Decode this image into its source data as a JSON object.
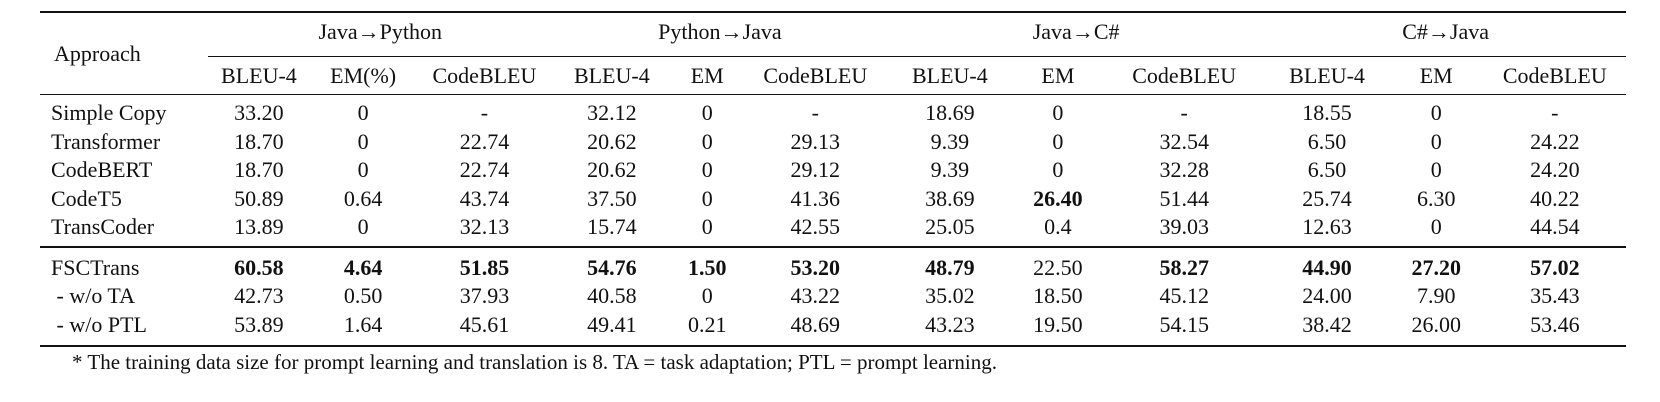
{
  "table": {
    "approach_header": "Approach",
    "groups": [
      {
        "label": "Java→Python",
        "metrics": [
          "BLEU-4",
          "EM(%)",
          "CodeBLEU"
        ]
      },
      {
        "label": "Python→Java",
        "metrics": [
          "BLEU-4",
          "EM",
          "CodeBLEU"
        ]
      },
      {
        "label": "Java→C#",
        "metrics": [
          "BLEU-4",
          "EM",
          "CodeBLEU"
        ]
      },
      {
        "label": "C#→Java",
        "metrics": [
          "BLEU-4",
          "EM",
          "CodeBLEU"
        ]
      }
    ],
    "rows": [
      {
        "approach": "Simple Copy",
        "values": [
          "33.20",
          "0",
          "-",
          "32.12",
          "0",
          "-",
          "18.69",
          "0",
          "-",
          "18.55",
          "0",
          "-"
        ],
        "bold": []
      },
      {
        "approach": "Transformer",
        "values": [
          "18.70",
          "0",
          "22.74",
          "20.62",
          "0",
          "29.13",
          "9.39",
          "0",
          "32.54",
          "6.50",
          "0",
          "24.22"
        ],
        "bold": []
      },
      {
        "approach": "CodeBERT",
        "values": [
          "18.70",
          "0",
          "22.74",
          "20.62",
          "0",
          "29.12",
          "9.39",
          "0",
          "32.28",
          "6.50",
          "0",
          "24.20"
        ],
        "bold": []
      },
      {
        "approach": "CodeT5",
        "values": [
          "50.89",
          "0.64",
          "43.74",
          "37.50",
          "0",
          "41.36",
          "38.69",
          "26.40",
          "51.44",
          "25.74",
          "6.30",
          "40.22"
        ],
        "bold": [
          7
        ]
      },
      {
        "approach": "TransCoder",
        "values": [
          "13.89",
          "0",
          "32.13",
          "15.74",
          "0",
          "42.55",
          "25.05",
          "0.4",
          "39.03",
          "12.63",
          "0",
          "44.54"
        ],
        "bold": []
      },
      {
        "approach": "FSCTrans",
        "values": [
          "60.58",
          "4.64",
          "51.85",
          "54.76",
          "1.50",
          "53.20",
          "48.79",
          "22.50",
          "58.27",
          "44.90",
          "27.20",
          "57.02"
        ],
        "bold": [
          0,
          1,
          2,
          3,
          4,
          5,
          6,
          8,
          9,
          10,
          11
        ]
      },
      {
        "approach": " - w/o TA",
        "values": [
          "42.73",
          "0.50",
          "37.93",
          "40.58",
          "0",
          "43.22",
          "35.02",
          "18.50",
          "45.12",
          "24.00",
          "7.90",
          "35.43"
        ],
        "bold": []
      },
      {
        "approach": " - w/o PTL",
        "values": [
          "53.89",
          "1.64",
          "45.61",
          "49.41",
          "0.21",
          "48.69",
          "43.23",
          "19.50",
          "54.15",
          "38.42",
          "26.00",
          "53.46"
        ],
        "bold": []
      }
    ]
  },
  "footnote": "* The training data size for prompt learning and translation is 8. TA = task adaptation; PTL = prompt learning."
}
